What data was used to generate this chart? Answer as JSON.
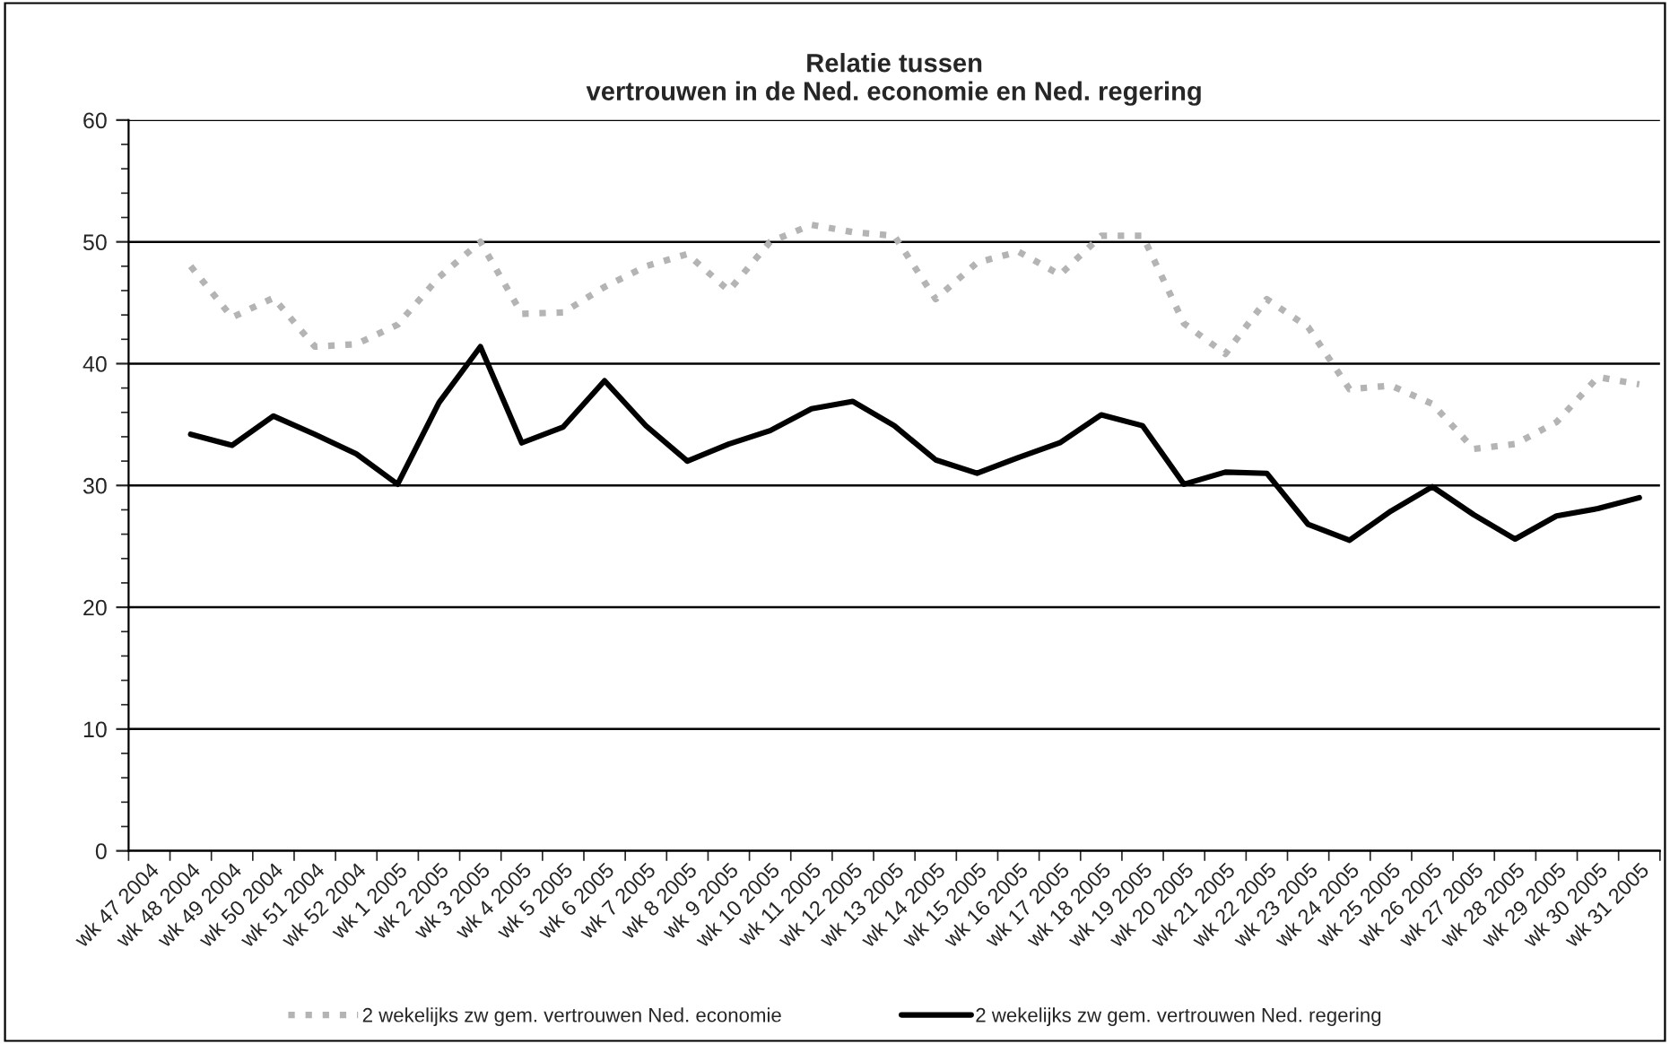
{
  "chart_data": {
    "type": "line",
    "title": "Relatie tussen\nvertrouwen in de Ned. economie en Ned. regering",
    "categories": [
      "wk 47 2004",
      "wk 48 2004",
      "wk 49 2004",
      "wk 50 2004",
      "wk 51 2004",
      "wk 52 2004",
      "wk 1 2005",
      "wk 2 2005",
      "wk 3 2005",
      "wk 4 2005",
      "wk 5 2005",
      "wk 6 2005",
      "wk 7 2005",
      "wk 8 2005",
      "wk 9 2005",
      "wk 10 2005",
      "wk 11 2005",
      "wk 12 2005",
      "wk 13 2005",
      "wk 14 2005",
      "wk 15 2005",
      "wk 16 2005",
      "wk 17 2005",
      "wk 18 2005",
      "wk 19 2005",
      "wk 20 2005",
      "wk 21 2005",
      "wk 22 2005",
      "wk 23 2005",
      "wk 24 2005",
      "wk 25 2005",
      "wk 26 2005",
      "wk 27 2005",
      "wk 28 2005",
      "wk 29 2005",
      "wk 30 2005",
      "wk 31 2005"
    ],
    "series": [
      {
        "name": "2 wekelijks zw gem. vertrouwen Ned. economie",
        "color": "#b4b4b4",
        "line_style": "dotted",
        "values": [
          null,
          48.0,
          43.8,
          45.4,
          41.4,
          41.6,
          43.2,
          47.1,
          50.0,
          44.1,
          44.2,
          46.3,
          48.0,
          49.0,
          46.0,
          50.0,
          51.4,
          50.8,
          50.5,
          45.3,
          48.3,
          49.2,
          47.3,
          50.5,
          50.5,
          43.3,
          40.8,
          45.3,
          43.0,
          37.9,
          38.2,
          36.7,
          33.0,
          33.4,
          35.2,
          38.9,
          38.3
        ]
      },
      {
        "name": "2 wekelijks zw gem. vertrouwen Ned. regering",
        "color": "#000000",
        "line_style": "solid",
        "values": [
          null,
          34.2,
          33.3,
          35.7,
          34.2,
          32.6,
          30.1,
          36.8,
          41.4,
          33.5,
          34.8,
          38.6,
          34.9,
          32.0,
          33.4,
          34.5,
          36.3,
          36.9,
          34.9,
          32.1,
          31.0,
          32.3,
          33.5,
          35.8,
          34.9,
          30.1,
          31.1,
          31.0,
          26.8,
          25.5,
          27.9,
          29.9,
          27.6,
          25.6,
          27.5,
          28.1,
          29.0
        ]
      }
    ],
    "ylim": [
      0,
      60
    ],
    "yticks": [
      0,
      10,
      20,
      30,
      40,
      50,
      60
    ],
    "grid": "y",
    "legend": "bottom",
    "marker": "none"
  }
}
